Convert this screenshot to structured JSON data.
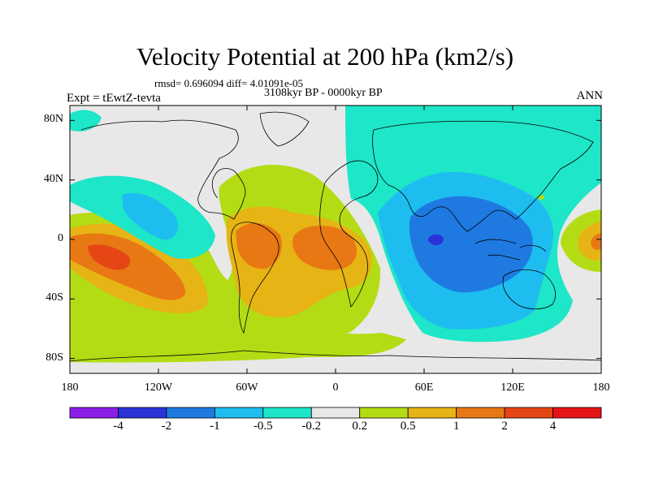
{
  "chart_data": {
    "type": "heatmap",
    "title": "Velocity Potential at 200 hPa (km2/s)",
    "subtitle_stats": "rmsd= 0.696094 diff= 4.01091e-05",
    "subtitle_period": "3108kyr BP - 0000kyr BP",
    "left_label": "Expt = tEwtZ-tevta",
    "right_label": "ANN",
    "x_ticks": [
      "180",
      "120W",
      "60W",
      "0",
      "60E",
      "120E",
      "180"
    ],
    "x_tick_values": [
      -180,
      -120,
      -60,
      0,
      60,
      120,
      180
    ],
    "y_ticks": [
      "80N",
      "40N",
      "0",
      "40S",
      "80S"
    ],
    "y_tick_values": [
      80,
      40,
      0,
      -40,
      -80
    ],
    "xlim": [
      -180,
      180
    ],
    "ylim": [
      -90,
      90
    ],
    "colorbar": {
      "labels": [
        "-4",
        "-2",
        "-1",
        "-0.5",
        "-0.2",
        "0.2",
        "0.5",
        "1",
        "2",
        "4"
      ],
      "levels": [
        -4,
        -2,
        -1,
        -0.5,
        -0.2,
        0.2,
        0.5,
        1,
        2,
        4
      ],
      "colors": [
        "#8c1ee8",
        "#2a32d8",
        "#1e7ae0",
        "#1ebdf0",
        "#1ee6c8",
        "#e8e8e8",
        "#b4dc14",
        "#e6b414",
        "#e87814",
        "#e64614",
        "#e61414"
      ]
    },
    "features": [
      {
        "name": "east-pacific-positive-max",
        "lon": -155,
        "lat": -12,
        "value": 2.5
      },
      {
        "name": "south-america-positive",
        "lon": -55,
        "lat": -8,
        "value": 1.5
      },
      {
        "name": "atlantic-africa-positive",
        "lon": -15,
        "lat": -5,
        "value": 1.5
      },
      {
        "name": "indian-ocean-negative-min",
        "lon": 65,
        "lat": 0,
        "value": -2.5
      },
      {
        "name": "maritime-continent-negative",
        "lon": 110,
        "lat": 0,
        "value": -1.2
      },
      {
        "name": "north-pacific-negative",
        "lon": -130,
        "lat": 20,
        "value": -0.6
      }
    ]
  }
}
